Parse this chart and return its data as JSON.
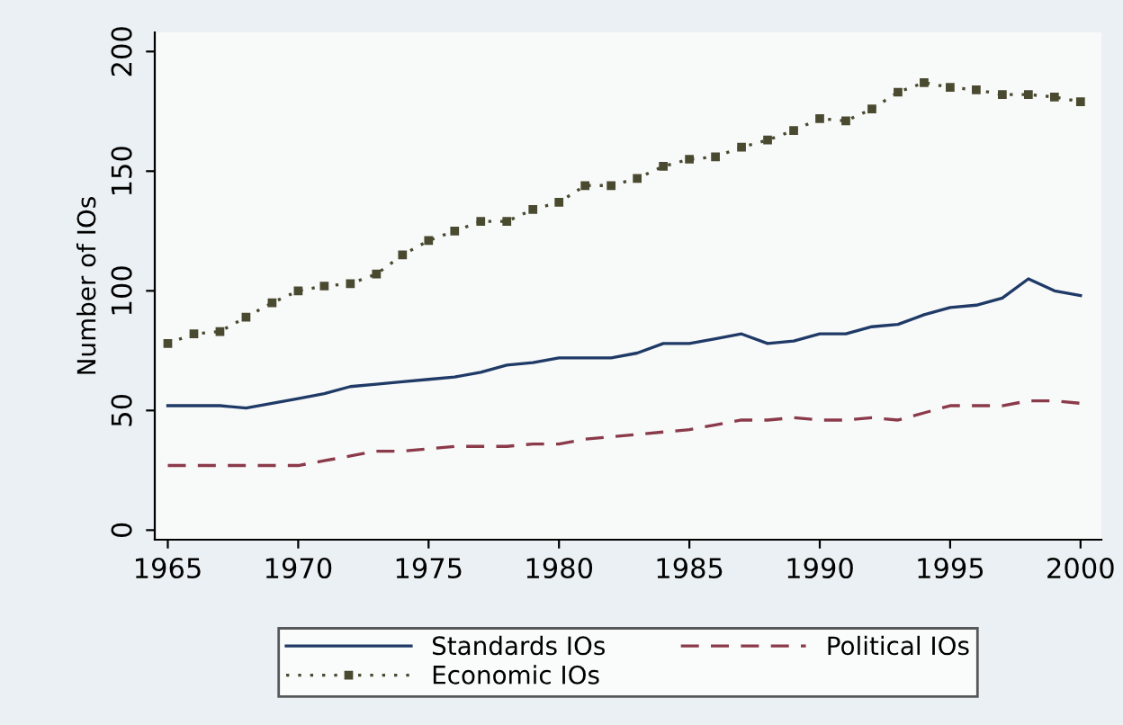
{
  "chart_data": {
    "type": "line",
    "ylabel": "Number of IOs",
    "x": [
      1965,
      1966,
      1967,
      1968,
      1969,
      1970,
      1971,
      1972,
      1973,
      1974,
      1975,
      1976,
      1977,
      1978,
      1979,
      1980,
      1981,
      1982,
      1983,
      1984,
      1985,
      1986,
      1987,
      1988,
      1989,
      1990,
      1991,
      1992,
      1993,
      1994,
      1995,
      1996,
      1997,
      1998,
      1999,
      2000
    ],
    "series": [
      {
        "name": "Standards IOs",
        "color": "#1f3a66",
        "line_style": "solid",
        "marker": "none",
        "values": [
          52,
          52,
          52,
          51,
          53,
          55,
          57,
          60,
          61,
          62,
          63,
          64,
          66,
          69,
          70,
          72,
          72,
          72,
          74,
          78,
          78,
          80,
          82,
          78,
          79,
          82,
          82,
          85,
          86,
          90,
          93,
          94,
          97,
          105,
          100,
          98
        ]
      },
      {
        "name": "Political IOs",
        "color": "#8b3a4a",
        "line_style": "dashed",
        "marker": "none",
        "values": [
          27,
          27,
          27,
          27,
          27,
          27,
          29,
          31,
          33,
          33,
          34,
          35,
          35,
          35,
          36,
          36,
          38,
          39,
          40,
          41,
          42,
          44,
          46,
          46,
          47,
          46,
          46,
          47,
          46,
          49,
          52,
          52,
          52,
          54,
          54,
          53
        ]
      },
      {
        "name": "Economic IOs",
        "color": "#4a4a30",
        "line_style": "dotted",
        "marker": "square",
        "values": [
          78,
          82,
          83,
          89,
          95,
          100,
          102,
          103,
          107,
          115,
          121,
          125,
          129,
          129,
          134,
          137,
          144,
          144,
          147,
          152,
          155,
          156,
          160,
          163,
          167,
          172,
          171,
          176,
          183,
          187,
          185,
          184,
          182,
          182,
          181,
          179
        ]
      }
    ],
    "xlim": [
      1964.5,
      2000.8
    ],
    "xticks": [
      1965,
      1970,
      1975,
      1980,
      1985,
      1990,
      1995,
      2000
    ],
    "ylim": [
      -4,
      208
    ],
    "yticks": [
      0,
      50,
      100,
      150,
      200
    ],
    "grid": false,
    "legend": "bottom"
  }
}
